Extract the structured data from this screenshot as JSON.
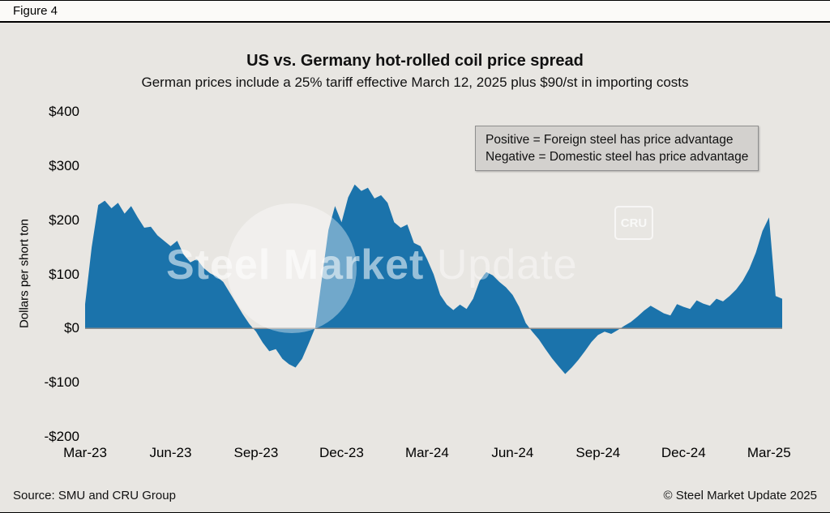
{
  "figure_label": "Figure 4",
  "title": "US vs. Germany hot-rolled coil price spread",
  "subtitle": "German prices include a 25% tariff effective March 12, 2025 plus $90/st in importing costs",
  "annotation": {
    "line1": "Positive = Foreign steel has price advantage",
    "line2": "Negative = Domestic steel has price advantage"
  },
  "watermark": {
    "text_bold": "Steel Market",
    "text_light": "Update",
    "badge": "CRU"
  },
  "footer": {
    "source": "Source: SMU and CRU Group",
    "copyright": "© Steel Market Update 2025"
  },
  "colors": {
    "area": "#1b73ab",
    "background": "#e8e6e2",
    "annotation_bg": "#d3d1ce",
    "zero_line": "#8e8e8e"
  },
  "chart_data": {
    "type": "area",
    "title": "US vs. Germany hot-rolled coil price spread",
    "subtitle": "German prices include a 25% tariff effective March 12, 2025 plus $90/st in importing costs",
    "xlabel": "",
    "ylabel": "Dollars per short ton",
    "ylim": [
      -200,
      400
    ],
    "ytick_values": [
      400,
      300,
      200,
      100,
      0,
      -100,
      -200
    ],
    "ytick_labels": [
      "$400",
      "$300",
      "$200",
      "$100",
      "$0",
      "-$100",
      "-$200"
    ],
    "x_tick_labels": [
      "Mar-23",
      "Jun-23",
      "Sep-23",
      "Dec-23",
      "Mar-24",
      "Jun-24",
      "Sep-24",
      "Dec-24",
      "Mar-25"
    ],
    "x_tick_weeks": [
      0,
      13,
      26,
      39,
      52,
      65,
      78,
      91,
      104
    ],
    "x_total_weeks": 106,
    "grid": false,
    "legend": "none",
    "series": [
      {
        "name": "US minus Germany HRC price spread ($/short ton, weekly)",
        "values": [
          45,
          150,
          228,
          236,
          222,
          232,
          212,
          226,
          205,
          186,
          188,
          172,
          162,
          152,
          162,
          136,
          122,
          128,
          112,
          102,
          96,
          86,
          66,
          46,
          26,
          8,
          -6,
          -26,
          -42,
          -38,
          -56,
          -66,
          -72,
          -56,
          -28,
          2,
          92,
          182,
          226,
          196,
          242,
          266,
          254,
          260,
          240,
          246,
          232,
          196,
          186,
          192,
          158,
          152,
          128,
          100,
          62,
          44,
          34,
          44,
          36,
          55,
          88,
          104,
          98,
          86,
          76,
          62,
          40,
          10,
          -6,
          -20,
          -38,
          -55,
          -70,
          -84,
          -72,
          -58,
          -42,
          -25,
          -12,
          -6,
          -10,
          -3,
          5,
          12,
          22,
          33,
          42,
          35,
          28,
          24,
          45,
          40,
          36,
          52,
          46,
          42,
          55,
          50,
          60,
          72,
          88,
          110,
          140,
          180,
          205,
          60,
          55
        ]
      }
    ]
  }
}
